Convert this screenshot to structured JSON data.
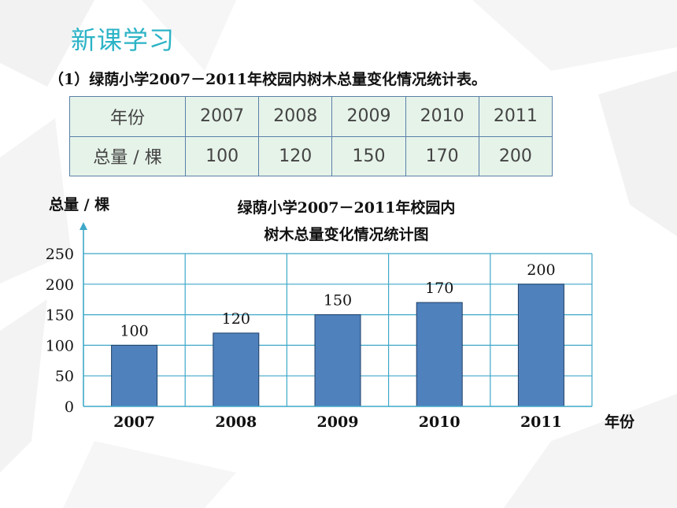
{
  "heading": "新课学习",
  "subtitle": "（1）绿荫小学2007－2011年校园内树木总量变化情况统计表。",
  "table": {
    "row_year_label": "年份",
    "row_total_label": "总量 / 棵",
    "years": [
      "2007",
      "2008",
      "2009",
      "2010",
      "2011"
    ],
    "totals": [
      "100",
      "120",
      "150",
      "170",
      "200"
    ]
  },
  "chart_data": {
    "type": "bar",
    "title_line1": "绿荫小学2007－2011年校园内",
    "title_line2": "树木总量变化情况统计图",
    "ylabel": "总量 / 棵",
    "xlabel": "年份",
    "categories": [
      "2007",
      "2008",
      "2009",
      "2010",
      "2011"
    ],
    "values": [
      100,
      120,
      150,
      170,
      200
    ],
    "yticks": [
      0,
      50,
      100,
      150,
      200,
      250
    ],
    "ylim": [
      0,
      250
    ],
    "grid": true,
    "bar_color": "#4f81bd",
    "grid_color": "#3fa8c9"
  }
}
